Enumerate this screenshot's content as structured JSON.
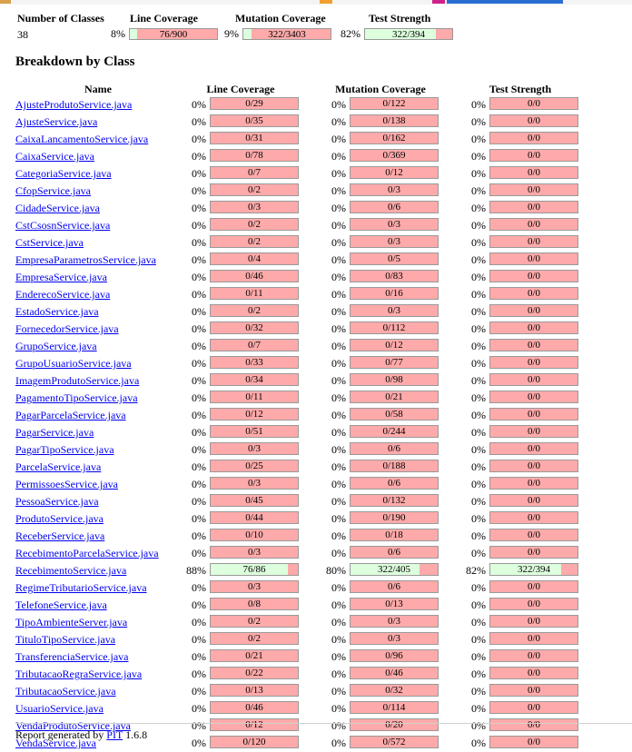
{
  "summary": {
    "headers": {
      "classes": "Number of Classes",
      "line": "Line Coverage",
      "mutation": "Mutation Coverage",
      "strength": "Test Strength"
    },
    "classes_count": "38",
    "line": {
      "percent": "8%",
      "label": "76/900",
      "fraction": 0.0844
    },
    "mutation": {
      "percent": "9%",
      "label": "322/3403",
      "fraction": 0.0946
    },
    "strength": {
      "percent": "82%",
      "label": "322/394",
      "fraction": 0.8173
    }
  },
  "breakdown": {
    "title": "Breakdown by Class",
    "columns": {
      "name": "Name",
      "line": "Line Coverage",
      "mutation": "Mutation Coverage",
      "strength": "Test Strength"
    },
    "rows": [
      {
        "name": "AjusteProdutoService.java",
        "lp": "0%",
        "lc": "0/29",
        "lf": 0,
        "mp": "0%",
        "mc": "0/122",
        "mf": 0,
        "sp": "0%",
        "sc": "0/0",
        "sf": 0
      },
      {
        "name": "AjusteService.java",
        "lp": "0%",
        "lc": "0/35",
        "lf": 0,
        "mp": "0%",
        "mc": "0/138",
        "mf": 0,
        "sp": "0%",
        "sc": "0/0",
        "sf": 0
      },
      {
        "name": "CaixaLancamentoService.java",
        "lp": "0%",
        "lc": "0/31",
        "lf": 0,
        "mp": "0%",
        "mc": "0/162",
        "mf": 0,
        "sp": "0%",
        "sc": "0/0",
        "sf": 0
      },
      {
        "name": "CaixaService.java",
        "lp": "0%",
        "lc": "0/78",
        "lf": 0,
        "mp": "0%",
        "mc": "0/369",
        "mf": 0,
        "sp": "0%",
        "sc": "0/0",
        "sf": 0
      },
      {
        "name": "CategoriaService.java",
        "lp": "0%",
        "lc": "0/7",
        "lf": 0,
        "mp": "0%",
        "mc": "0/12",
        "mf": 0,
        "sp": "0%",
        "sc": "0/0",
        "sf": 0
      },
      {
        "name": "CfopService.java",
        "lp": "0%",
        "lc": "0/2",
        "lf": 0,
        "mp": "0%",
        "mc": "0/3",
        "mf": 0,
        "sp": "0%",
        "sc": "0/0",
        "sf": 0
      },
      {
        "name": "CidadeService.java",
        "lp": "0%",
        "lc": "0/3",
        "lf": 0,
        "mp": "0%",
        "mc": "0/6",
        "mf": 0,
        "sp": "0%",
        "sc": "0/0",
        "sf": 0
      },
      {
        "name": "CstCsosnService.java",
        "lp": "0%",
        "lc": "0/2",
        "lf": 0,
        "mp": "0%",
        "mc": "0/3",
        "mf": 0,
        "sp": "0%",
        "sc": "0/0",
        "sf": 0
      },
      {
        "name": "CstService.java",
        "lp": "0%",
        "lc": "0/2",
        "lf": 0,
        "mp": "0%",
        "mc": "0/3",
        "mf": 0,
        "sp": "0%",
        "sc": "0/0",
        "sf": 0
      },
      {
        "name": "EmpresaParametrosService.java",
        "lp": "0%",
        "lc": "0/4",
        "lf": 0,
        "mp": "0%",
        "mc": "0/5",
        "mf": 0,
        "sp": "0%",
        "sc": "0/0",
        "sf": 0
      },
      {
        "name": "EmpresaService.java",
        "lp": "0%",
        "lc": "0/46",
        "lf": 0,
        "mp": "0%",
        "mc": "0/83",
        "mf": 0,
        "sp": "0%",
        "sc": "0/0",
        "sf": 0
      },
      {
        "name": "EnderecoService.java",
        "lp": "0%",
        "lc": "0/11",
        "lf": 0,
        "mp": "0%",
        "mc": "0/16",
        "mf": 0,
        "sp": "0%",
        "sc": "0/0",
        "sf": 0
      },
      {
        "name": "EstadoService.java",
        "lp": "0%",
        "lc": "0/2",
        "lf": 0,
        "mp": "0%",
        "mc": "0/3",
        "mf": 0,
        "sp": "0%",
        "sc": "0/0",
        "sf": 0
      },
      {
        "name": "FornecedorService.java",
        "lp": "0%",
        "lc": "0/32",
        "lf": 0,
        "mp": "0%",
        "mc": "0/112",
        "mf": 0,
        "sp": "0%",
        "sc": "0/0",
        "sf": 0
      },
      {
        "name": "GrupoService.java",
        "lp": "0%",
        "lc": "0/7",
        "lf": 0,
        "mp": "0%",
        "mc": "0/12",
        "mf": 0,
        "sp": "0%",
        "sc": "0/0",
        "sf": 0
      },
      {
        "name": "GrupoUsuarioService.java",
        "lp": "0%",
        "lc": "0/33",
        "lf": 0,
        "mp": "0%",
        "mc": "0/77",
        "mf": 0,
        "sp": "0%",
        "sc": "0/0",
        "sf": 0
      },
      {
        "name": "ImagemProdutoService.java",
        "lp": "0%",
        "lc": "0/34",
        "lf": 0,
        "mp": "0%",
        "mc": "0/98",
        "mf": 0,
        "sp": "0%",
        "sc": "0/0",
        "sf": 0
      },
      {
        "name": "PagamentoTipoService.java",
        "lp": "0%",
        "lc": "0/11",
        "lf": 0,
        "mp": "0%",
        "mc": "0/21",
        "mf": 0,
        "sp": "0%",
        "sc": "0/0",
        "sf": 0
      },
      {
        "name": "PagarParcelaService.java",
        "lp": "0%",
        "lc": "0/12",
        "lf": 0,
        "mp": "0%",
        "mc": "0/58",
        "mf": 0,
        "sp": "0%",
        "sc": "0/0",
        "sf": 0
      },
      {
        "name": "PagarService.java",
        "lp": "0%",
        "lc": "0/51",
        "lf": 0,
        "mp": "0%",
        "mc": "0/244",
        "mf": 0,
        "sp": "0%",
        "sc": "0/0",
        "sf": 0
      },
      {
        "name": "PagarTipoService.java",
        "lp": "0%",
        "lc": "0/3",
        "lf": 0,
        "mp": "0%",
        "mc": "0/6",
        "mf": 0,
        "sp": "0%",
        "sc": "0/0",
        "sf": 0
      },
      {
        "name": "ParcelaService.java",
        "lp": "0%",
        "lc": "0/25",
        "lf": 0,
        "mp": "0%",
        "mc": "0/188",
        "mf": 0,
        "sp": "0%",
        "sc": "0/0",
        "sf": 0
      },
      {
        "name": "PermissoesService.java",
        "lp": "0%",
        "lc": "0/3",
        "lf": 0,
        "mp": "0%",
        "mc": "0/6",
        "mf": 0,
        "sp": "0%",
        "sc": "0/0",
        "sf": 0
      },
      {
        "name": "PessoaService.java",
        "lp": "0%",
        "lc": "0/45",
        "lf": 0,
        "mp": "0%",
        "mc": "0/132",
        "mf": 0,
        "sp": "0%",
        "sc": "0/0",
        "sf": 0
      },
      {
        "name": "ProdutoService.java",
        "lp": "0%",
        "lc": "0/44",
        "lf": 0,
        "mp": "0%",
        "mc": "0/190",
        "mf": 0,
        "sp": "0%",
        "sc": "0/0",
        "sf": 0
      },
      {
        "name": "ReceberService.java",
        "lp": "0%",
        "lc": "0/10",
        "lf": 0,
        "mp": "0%",
        "mc": "0/18",
        "mf": 0,
        "sp": "0%",
        "sc": "0/0",
        "sf": 0
      },
      {
        "name": "RecebimentoParcelaService.java",
        "lp": "0%",
        "lc": "0/3",
        "lf": 0,
        "mp": "0%",
        "mc": "0/6",
        "mf": 0,
        "sp": "0%",
        "sc": "0/0",
        "sf": 0
      },
      {
        "name": "RecebimentoService.java",
        "lp": "88%",
        "lc": "76/86",
        "lf": 0.884,
        "mp": "80%",
        "mc": "322/405",
        "mf": 0.795,
        "sp": "82%",
        "sc": "322/394",
        "sf": 0.817
      },
      {
        "name": "RegimeTributarioService.java",
        "lp": "0%",
        "lc": "0/3",
        "lf": 0,
        "mp": "0%",
        "mc": "0/6",
        "mf": 0,
        "sp": "0%",
        "sc": "0/0",
        "sf": 0
      },
      {
        "name": "TelefoneService.java",
        "lp": "0%",
        "lc": "0/8",
        "lf": 0,
        "mp": "0%",
        "mc": "0/13",
        "mf": 0,
        "sp": "0%",
        "sc": "0/0",
        "sf": 0
      },
      {
        "name": "TipoAmbienteServer.java",
        "lp": "0%",
        "lc": "0/2",
        "lf": 0,
        "mp": "0%",
        "mc": "0/3",
        "mf": 0,
        "sp": "0%",
        "sc": "0/0",
        "sf": 0
      },
      {
        "name": "TituloTipoService.java",
        "lp": "0%",
        "lc": "0/2",
        "lf": 0,
        "mp": "0%",
        "mc": "0/3",
        "mf": 0,
        "sp": "0%",
        "sc": "0/0",
        "sf": 0
      },
      {
        "name": "TransferenciaService.java",
        "lp": "0%",
        "lc": "0/21",
        "lf": 0,
        "mp": "0%",
        "mc": "0/96",
        "mf": 0,
        "sp": "0%",
        "sc": "0/0",
        "sf": 0
      },
      {
        "name": "TributacaoRegraService.java",
        "lp": "0%",
        "lc": "0/22",
        "lf": 0,
        "mp": "0%",
        "mc": "0/46",
        "mf": 0,
        "sp": "0%",
        "sc": "0/0",
        "sf": 0
      },
      {
        "name": "TributacaoService.java",
        "lp": "0%",
        "lc": "0/13",
        "lf": 0,
        "mp": "0%",
        "mc": "0/32",
        "mf": 0,
        "sp": "0%",
        "sc": "0/0",
        "sf": 0
      },
      {
        "name": "UsuarioService.java",
        "lp": "0%",
        "lc": "0/46",
        "lf": 0,
        "mp": "0%",
        "mc": "0/114",
        "mf": 0,
        "sp": "0%",
        "sc": "0/0",
        "sf": 0
      },
      {
        "name": "VendaProdutoService.java",
        "lp": "0%",
        "lc": "0/12",
        "lf": 0,
        "mp": "0%",
        "mc": "0/20",
        "mf": 0,
        "sp": "0%",
        "sc": "0/0",
        "sf": 0
      },
      {
        "name": "VendaService.java",
        "lp": "0%",
        "lc": "0/120",
        "lf": 0,
        "mp": "0%",
        "mc": "0/572",
        "mf": 0,
        "sp": "0%",
        "sc": "0/0",
        "sf": 0
      }
    ]
  },
  "footer": {
    "prefix": "Report generated by",
    "link": "PIT",
    "version": "1.6.8"
  },
  "colors": {
    "covered": "#ddffdd",
    "uncovered": "#ffaaaa",
    "link": "#0000ee",
    "border": "#999999"
  }
}
